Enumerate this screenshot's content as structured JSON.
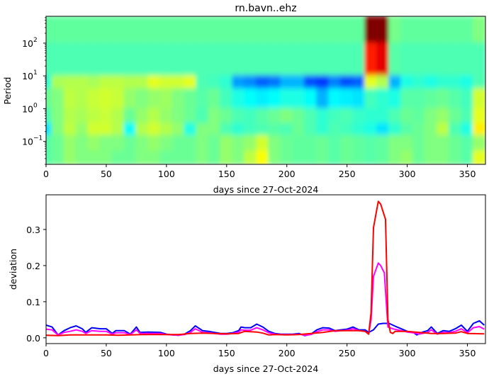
{
  "chart_data": [
    {
      "type": "heatmap",
      "title": "rn.bavn..ehz",
      "xlabel": "days since 27-Oct-2024",
      "ylabel": "Period",
      "xlim": [
        0,
        365
      ],
      "ylim": [
        0.02,
        660
      ],
      "yscale": "log",
      "colormap": "jet",
      "xticks": [
        "0",
        "50",
        "100",
        "150",
        "200",
        "250",
        "300",
        "350"
      ],
      "xtick_values": [
        0,
        50,
        100,
        150,
        200,
        250,
        300,
        350
      ],
      "yticks": [
        {
          "base": "10",
          "exp": "2",
          "value": 100
        },
        {
          "base": "10",
          "exp": "1",
          "value": 10
        },
        {
          "base": "10",
          "exp": "0",
          "value": 1
        },
        {
          "base": "10",
          "exp": "−1",
          "value": 0.1
        }
      ],
      "x": [
        0,
        10,
        20,
        30,
        40,
        50,
        60,
        70,
        80,
        90,
        100,
        110,
        120,
        130,
        140,
        150,
        160,
        170,
        180,
        190,
        200,
        210,
        220,
        230,
        240,
        250,
        260,
        270,
        280,
        290,
        300,
        310,
        320,
        330,
        340,
        350,
        360
      ],
      "period_bands": [
        [
          100,
          660
        ],
        [
          10,
          100
        ],
        [
          4,
          10
        ],
        [
          1,
          4
        ],
        [
          0.35,
          1
        ],
        [
          0.15,
          0.35
        ],
        [
          0.05,
          0.15
        ],
        [
          0.02,
          0.05
        ]
      ],
      "values": [
        [
          0.47,
          0.47,
          0.47,
          0.47,
          0.47,
          0.47,
          0.47,
          0.47,
          0.47,
          0.47,
          0.47,
          0.47,
          0.47,
          0.47,
          0.47,
          0.47,
          0.47,
          0.47,
          0.47,
          0.47,
          0.47,
          0.47,
          0.47,
          0.47,
          0.47,
          0.47,
          0.47,
          1.0,
          1.0,
          0.49,
          0.47,
          0.47,
          0.47,
          0.47,
          0.47,
          0.47,
          0.5
        ],
        [
          0.45,
          0.45,
          0.45,
          0.45,
          0.45,
          0.45,
          0.45,
          0.45,
          0.45,
          0.45,
          0.45,
          0.45,
          0.45,
          0.45,
          0.45,
          0.45,
          0.45,
          0.45,
          0.45,
          0.45,
          0.45,
          0.45,
          0.45,
          0.45,
          0.45,
          0.45,
          0.45,
          0.85,
          0.9,
          0.46,
          0.45,
          0.45,
          0.45,
          0.45,
          0.45,
          0.45,
          0.45
        ],
        [
          0.42,
          0.54,
          0.55,
          0.55,
          0.54,
          0.56,
          0.56,
          0.55,
          0.55,
          0.6,
          0.58,
          0.58,
          0.6,
          0.45,
          0.44,
          0.42,
          0.28,
          0.26,
          0.22,
          0.24,
          0.3,
          0.3,
          0.2,
          0.18,
          0.25,
          0.2,
          0.22,
          0.6,
          0.55,
          0.3,
          0.4,
          0.42,
          0.4,
          0.42,
          0.42,
          0.4,
          0.45
        ],
        [
          0.48,
          0.5,
          0.56,
          0.55,
          0.57,
          0.58,
          0.57,
          0.52,
          0.5,
          0.52,
          0.53,
          0.5,
          0.48,
          0.46,
          0.48,
          0.44,
          0.4,
          0.38,
          0.36,
          0.38,
          0.4,
          0.4,
          0.38,
          0.3,
          0.37,
          0.36,
          0.35,
          0.44,
          0.42,
          0.4,
          0.46,
          0.46,
          0.47,
          0.48,
          0.46,
          0.44,
          0.58
        ],
        [
          0.45,
          0.5,
          0.55,
          0.54,
          0.56,
          0.57,
          0.55,
          0.48,
          0.52,
          0.55,
          0.52,
          0.5,
          0.48,
          0.45,
          0.5,
          0.48,
          0.45,
          0.44,
          0.46,
          0.48,
          0.5,
          0.48,
          0.45,
          0.42,
          0.44,
          0.45,
          0.43,
          0.42,
          0.42,
          0.45,
          0.48,
          0.47,
          0.5,
          0.52,
          0.48,
          0.45,
          0.6
        ],
        [
          0.35,
          0.5,
          0.56,
          0.52,
          0.58,
          0.58,
          0.55,
          0.38,
          0.55,
          0.58,
          0.55,
          0.52,
          0.4,
          0.5,
          0.5,
          0.45,
          0.42,
          0.44,
          0.45,
          0.46,
          0.45,
          0.48,
          0.45,
          0.42,
          0.45,
          0.44,
          0.42,
          0.4,
          0.35,
          0.42,
          0.46,
          0.48,
          0.5,
          0.56,
          0.45,
          0.4,
          0.64
        ],
        [
          0.46,
          0.48,
          0.52,
          0.5,
          0.52,
          0.5,
          0.5,
          0.48,
          0.5,
          0.52,
          0.5,
          0.48,
          0.48,
          0.5,
          0.48,
          0.52,
          0.5,
          0.52,
          0.58,
          0.5,
          0.48,
          0.47,
          0.47,
          0.48,
          0.46,
          0.48,
          0.47,
          0.46,
          0.47,
          0.5,
          0.5,
          0.48,
          0.5,
          0.5,
          0.48,
          0.46,
          0.52
        ],
        [
          0.46,
          0.48,
          0.52,
          0.5,
          0.5,
          0.5,
          0.48,
          0.48,
          0.5,
          0.5,
          0.48,
          0.48,
          0.48,
          0.5,
          0.48,
          0.52,
          0.5,
          0.56,
          0.62,
          0.5,
          0.48,
          0.47,
          0.47,
          0.48,
          0.46,
          0.48,
          0.47,
          0.46,
          0.47,
          0.5,
          0.52,
          0.48,
          0.5,
          0.5,
          0.48,
          0.46,
          0.6
        ]
      ]
    },
    {
      "type": "line",
      "xlabel": "days since 27-Oct-2024",
      "ylabel": "deviation",
      "xlim": [
        0,
        365
      ],
      "ylim": [
        -0.016,
        0.396
      ],
      "xticks": [
        "0",
        "50",
        "100",
        "150",
        "200",
        "250",
        "300",
        "350"
      ],
      "xtick_values": [
        0,
        50,
        100,
        150,
        200,
        250,
        300,
        350
      ],
      "yticks": [
        "0.0",
        "0.1",
        "0.2",
        "0.3"
      ],
      "ytick_values": [
        0,
        0.1,
        0.2,
        0.3
      ],
      "series": [
        {
          "color": "#0000ff",
          "x": [
            0,
            5,
            10,
            15,
            20,
            25,
            30,
            33,
            38,
            45,
            50,
            55,
            58,
            65,
            70,
            75,
            78,
            85,
            95,
            100,
            105,
            110,
            115,
            120,
            124,
            130,
            135,
            140,
            145,
            150,
            155,
            160,
            162,
            165,
            170,
            175,
            180,
            185,
            190,
            195,
            200,
            205,
            210,
            215,
            220,
            225,
            230,
            235,
            240,
            245,
            250,
            255,
            260,
            265,
            268,
            272,
            276,
            280,
            285,
            290,
            295,
            300,
            305,
            308,
            312,
            317,
            320,
            325,
            330,
            335,
            340,
            345,
            350,
            355,
            360,
            364
          ],
          "y": [
            0.035,
            0.03,
            0.008,
            0.02,
            0.028,
            0.033,
            0.025,
            0.015,
            0.028,
            0.025,
            0.025,
            0.012,
            0.02,
            0.02,
            0.01,
            0.03,
            0.015,
            0.016,
            0.015,
            0.01,
            0.008,
            0.007,
            0.01,
            0.02,
            0.033,
            0.02,
            0.018,
            0.015,
            0.012,
            0.012,
            0.014,
            0.02,
            0.03,
            0.028,
            0.028,
            0.038,
            0.03,
            0.018,
            0.012,
            0.01,
            0.01,
            0.01,
            0.012,
            0.006,
            0.01,
            0.022,
            0.028,
            0.027,
            0.02,
            0.022,
            0.024,
            0.03,
            0.022,
            0.022,
            0.015,
            0.022,
            0.038,
            0.04,
            0.04,
            0.032,
            0.025,
            0.018,
            0.015,
            0.008,
            0.015,
            0.02,
            0.03,
            0.012,
            0.02,
            0.018,
            0.025,
            0.035,
            0.018,
            0.04,
            0.047,
            0.035
          ]
        },
        {
          "color": "#ff00ff",
          "x": [
            0,
            5,
            10,
            15,
            20,
            25,
            30,
            33,
            38,
            45,
            50,
            55,
            58,
            65,
            70,
            75,
            78,
            85,
            95,
            100,
            105,
            110,
            115,
            120,
            124,
            130,
            135,
            140,
            145,
            150,
            155,
            160,
            162,
            165,
            170,
            175,
            180,
            185,
            190,
            195,
            200,
            205,
            210,
            215,
            220,
            225,
            230,
            235,
            240,
            245,
            250,
            255,
            260,
            265,
            268,
            270,
            272,
            276,
            278,
            281,
            284,
            288,
            295,
            300,
            305,
            310,
            317,
            320,
            325,
            330,
            335,
            340,
            345,
            350,
            355,
            360,
            364
          ],
          "y": [
            0.024,
            0.022,
            0.008,
            0.015,
            0.018,
            0.022,
            0.018,
            0.012,
            0.02,
            0.018,
            0.018,
            0.01,
            0.014,
            0.014,
            0.009,
            0.022,
            0.012,
            0.012,
            0.012,
            0.009,
            0.008,
            0.007,
            0.009,
            0.015,
            0.025,
            0.015,
            0.014,
            0.012,
            0.01,
            0.01,
            0.012,
            0.016,
            0.022,
            0.021,
            0.021,
            0.028,
            0.022,
            0.014,
            0.01,
            0.009,
            0.009,
            0.009,
            0.01,
            0.007,
            0.009,
            0.017,
            0.022,
            0.022,
            0.018,
            0.02,
            0.021,
            0.025,
            0.02,
            0.018,
            0.012,
            0.05,
            0.17,
            0.207,
            0.2,
            0.18,
            0.03,
            0.025,
            0.02,
            0.016,
            0.014,
            0.01,
            0.015,
            0.022,
            0.01,
            0.015,
            0.014,
            0.018,
            0.025,
            0.014,
            0.028,
            0.031,
            0.024
          ]
        },
        {
          "color": "#ff0000",
          "x": [
            0,
            10,
            20,
            30,
            40,
            50,
            60,
            70,
            80,
            90,
            100,
            110,
            120,
            130,
            140,
            150,
            160,
            165,
            170,
            175,
            180,
            185,
            190,
            200,
            210,
            220,
            230,
            240,
            250,
            260,
            265,
            268,
            270,
            272,
            276,
            278,
            282,
            284,
            286,
            288,
            290,
            300,
            310,
            320,
            330,
            340,
            345,
            350,
            364
          ],
          "y": [
            0.007,
            0.006,
            0.008,
            0.008,
            0.008,
            0.008,
            0.007,
            0.008,
            0.009,
            0.009,
            0.009,
            0.009,
            0.012,
            0.013,
            0.012,
            0.011,
            0.012,
            0.018,
            0.017,
            0.016,
            0.013,
            0.008,
            0.009,
            0.008,
            0.009,
            0.012,
            0.015,
            0.02,
            0.02,
            0.02,
            0.018,
            0.01,
            0.07,
            0.305,
            0.378,
            0.37,
            0.328,
            0.05,
            0.015,
            0.012,
            0.018,
            0.018,
            0.015,
            0.012,
            0.012,
            0.013,
            0.017,
            0.012,
            0.011
          ]
        }
      ]
    }
  ]
}
